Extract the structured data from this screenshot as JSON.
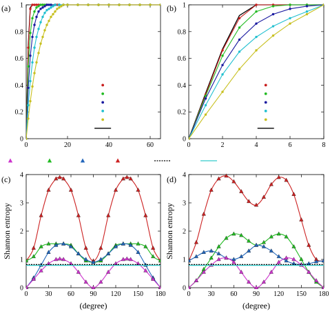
{
  "figure": {
    "legend_row_colors": [
      "#cc33cc",
      "#22bb22",
      "#2266bb",
      "#cc2222",
      "#000000",
      "#33cccc"
    ]
  },
  "chart_data": [
    {
      "id": "a",
      "panel_label": "(a)",
      "type": "line",
      "xlim": [
        0,
        65
      ],
      "ylim": [
        0,
        1
      ],
      "xticks": [
        "0",
        "20",
        "40",
        "60"
      ],
      "xtick_values": [
        0,
        20,
        40,
        60
      ],
      "yticks": [
        "0",
        "0.2",
        "0.4",
        "0.6",
        "0.8",
        "1"
      ],
      "ytick_values": [
        0,
        0.2,
        0.4,
        0.6,
        0.8,
        1
      ],
      "xlabel": "",
      "ylabel": "",
      "grid": false,
      "legend": {
        "position": "bottom-right",
        "entries": [
          {
            "color": "#c81e1e",
            "kind": "dot"
          },
          {
            "color": "#22bb22",
            "kind": "dot"
          },
          {
            "color": "#1a1aa0",
            "kind": "dot"
          },
          {
            "color": "#22c0d0",
            "kind": "dot"
          },
          {
            "color": "#c8c020",
            "kind": "dot"
          },
          {
            "color": "#000000",
            "kind": "line"
          }
        ]
      },
      "series": [
        {
          "color": "#000000",
          "marker": "none",
          "x": [
            0,
            1,
            2,
            3,
            4,
            65
          ],
          "y": [
            0,
            0.7,
            0.98,
            1,
            1,
            1
          ]
        },
        {
          "color": "#c81e1e",
          "marker": "dot",
          "x": [
            0,
            1,
            2,
            3,
            4,
            5,
            6,
            8,
            10,
            15,
            20,
            25,
            30,
            35,
            40,
            45,
            50,
            55,
            60,
            65
          ],
          "y": [
            0,
            0.68,
            0.97,
            1,
            1,
            1,
            1,
            1,
            1,
            1,
            1,
            1,
            1,
            1,
            1,
            1,
            1,
            1,
            1,
            1
          ]
        },
        {
          "color": "#22bb22",
          "marker": "dot",
          "x": [
            0,
            1,
            2,
            3,
            4,
            5,
            6,
            7,
            8,
            9,
            10,
            12,
            14,
            16,
            18,
            20,
            25,
            30,
            35,
            40,
            45,
            50,
            55,
            60,
            65
          ],
          "y": [
            0,
            0.54,
            0.79,
            0.9,
            0.95,
            0.98,
            0.99,
            1,
            1,
            1,
            1,
            1,
            1,
            1,
            1,
            1,
            1,
            1,
            1,
            1,
            1,
            1,
            1,
            1,
            1
          ]
        },
        {
          "color": "#1a1aa0",
          "marker": "dot",
          "x": [
            0,
            1,
            2,
            3,
            4,
            5,
            6,
            7,
            8,
            9,
            10,
            11,
            12,
            14,
            16,
            18,
            20,
            25,
            30,
            35,
            40,
            45,
            50,
            55,
            60,
            65
          ],
          "y": [
            0,
            0.38,
            0.62,
            0.76,
            0.85,
            0.91,
            0.95,
            0.97,
            0.98,
            0.99,
            1,
            1,
            1,
            1,
            1,
            1,
            1,
            1,
            1,
            1,
            1,
            1,
            1,
            1,
            1,
            1
          ]
        },
        {
          "color": "#22c0d0",
          "marker": "dot",
          "x": [
            0,
            1,
            2,
            3,
            4,
            5,
            6,
            7,
            8,
            9,
            10,
            11,
            12,
            13,
            14,
            16,
            18,
            20,
            25,
            30,
            35,
            40,
            45,
            50,
            55,
            60,
            65
          ],
          "y": [
            0,
            0.25,
            0.43,
            0.57,
            0.68,
            0.76,
            0.82,
            0.87,
            0.91,
            0.94,
            0.96,
            0.97,
            0.98,
            0.99,
            1,
            1,
            1,
            1,
            1,
            1,
            1,
            1,
            1,
            1,
            1,
            1,
            1
          ]
        },
        {
          "color": "#c8c020",
          "marker": "dot",
          "x": [
            0,
            1,
            2,
            3,
            4,
            5,
            6,
            7,
            8,
            9,
            10,
            11,
            12,
            13,
            14,
            15,
            16,
            17,
            18,
            20,
            25,
            30,
            35,
            40,
            45,
            50,
            55,
            60,
            65
          ],
          "y": [
            0,
            0.15,
            0.28,
            0.39,
            0.49,
            0.57,
            0.64,
            0.71,
            0.76,
            0.81,
            0.85,
            0.88,
            0.91,
            0.93,
            0.95,
            0.97,
            0.98,
            0.99,
            1,
            1,
            1,
            1,
            1,
            1,
            1,
            1,
            1,
            1,
            1
          ]
        }
      ]
    },
    {
      "id": "b",
      "panel_label": "(b)",
      "type": "line",
      "xlim": [
        0,
        8
      ],
      "ylim": [
        0,
        1
      ],
      "xticks": [
        "0",
        "2",
        "4",
        "6",
        "8"
      ],
      "xtick_values": [
        0,
        2,
        4,
        6,
        8
      ],
      "yticks": [
        "0",
        "0.2",
        "0.4",
        "0.6",
        "0.8",
        "1"
      ],
      "ytick_values": [
        0,
        0.2,
        0.4,
        0.6,
        0.8,
        1
      ],
      "xlabel": "",
      "ylabel": "",
      "grid": false,
      "legend": {
        "position": "bottom-right",
        "entries": [
          {
            "color": "#c81e1e",
            "kind": "dot"
          },
          {
            "color": "#22bb22",
            "kind": "dot"
          },
          {
            "color": "#1a1aa0",
            "kind": "dot"
          },
          {
            "color": "#22c0d0",
            "kind": "dot"
          },
          {
            "color": "#c8c020",
            "kind": "dot"
          },
          {
            "color": "#000000",
            "kind": "line"
          }
        ]
      },
      "series": [
        {
          "color": "#000000",
          "marker": "none",
          "x": [
            0,
            1,
            2,
            3,
            4,
            5,
            6,
            7,
            8
          ],
          "y": [
            0,
            0.34,
            0.67,
            0.92,
            1,
            1,
            1,
            1,
            1
          ]
        },
        {
          "color": "#c81e1e",
          "marker": "dot",
          "x": [
            0,
            1,
            2,
            3,
            4,
            5,
            6,
            7,
            8
          ],
          "y": [
            0,
            0.33,
            0.66,
            0.9,
            1,
            1,
            1,
            1,
            1
          ]
        },
        {
          "color": "#22bb22",
          "marker": "dot",
          "x": [
            0,
            1,
            2,
            3,
            4,
            5,
            6,
            7,
            8
          ],
          "y": [
            0,
            0.32,
            0.62,
            0.83,
            0.95,
            0.99,
            1,
            1,
            1
          ]
        },
        {
          "color": "#1a1aa0",
          "marker": "dot",
          "x": [
            0,
            1,
            2,
            3,
            4,
            5,
            6,
            7,
            8
          ],
          "y": [
            0,
            0.3,
            0.55,
            0.74,
            0.86,
            0.93,
            0.97,
            0.99,
            1
          ]
        },
        {
          "color": "#22c0d0",
          "marker": "dot",
          "x": [
            0,
            1,
            2,
            3,
            4,
            5,
            6,
            7,
            8
          ],
          "y": [
            0,
            0.25,
            0.48,
            0.65,
            0.76,
            0.84,
            0.9,
            0.95,
            1
          ]
        },
        {
          "color": "#c8c020",
          "marker": "dot",
          "x": [
            0,
            1,
            2,
            3,
            4,
            5,
            6,
            7,
            8
          ],
          "y": [
            0,
            0.18,
            0.35,
            0.52,
            0.66,
            0.77,
            0.86,
            0.93,
            1
          ]
        }
      ]
    },
    {
      "id": "c",
      "panel_label": "(c)",
      "type": "line",
      "xlim": [
        0,
        180
      ],
      "ylim": [
        0,
        4
      ],
      "xticks": [
        "0",
        "30",
        "60",
        "90",
        "120",
        "150",
        "180"
      ],
      "xtick_values": [
        0,
        30,
        60,
        90,
        120,
        150,
        180
      ],
      "yticks": [
        "0",
        "1",
        "2",
        "3",
        "4"
      ],
      "ytick_values": [
        0,
        1,
        2,
        3,
        4
      ],
      "xlabel": "(degree)",
      "ylabel": "Shannon entropy",
      "grid": false,
      "series": [
        {
          "color": "#cc2222",
          "marker": "triangle",
          "x": [
            0,
            10,
            20,
            30,
            40,
            45,
            50,
            60,
            70,
            80,
            90,
            100,
            110,
            120,
            130,
            135,
            140,
            150,
            160,
            170,
            180
          ],
          "y": [
            0.95,
            1.4,
            2.55,
            3.45,
            3.85,
            3.9,
            3.85,
            3.45,
            2.55,
            1.4,
            0.95,
            1.4,
            2.55,
            3.45,
            3.85,
            3.9,
            3.85,
            3.45,
            2.55,
            1.4,
            0.95
          ]
        },
        {
          "color": "#22bb22",
          "marker": "triangle",
          "x": [
            0,
            10,
            20,
            30,
            40,
            50,
            60,
            70,
            80,
            90,
            100,
            110,
            120,
            130,
            140,
            150,
            160,
            170,
            180
          ],
          "y": [
            0.95,
            1.1,
            1.45,
            1.55,
            1.55,
            1.55,
            1.5,
            1.2,
            0.95,
            0.9,
            0.95,
            1.2,
            1.5,
            1.55,
            1.55,
            1.55,
            1.45,
            1.1,
            0.95
          ]
        },
        {
          "color": "#2266bb",
          "marker": "triangle",
          "x": [
            0,
            10,
            20,
            30,
            40,
            50,
            60,
            70,
            80,
            90,
            100,
            110,
            120,
            130,
            140,
            150,
            160,
            170,
            180
          ],
          "y": [
            0,
            0.35,
            0.8,
            1.25,
            1.5,
            1.55,
            1.45,
            1.2,
            1.0,
            0.9,
            1.0,
            1.2,
            1.45,
            1.55,
            1.5,
            1.25,
            0.8,
            0.35,
            0
          ]
        },
        {
          "color": "#cc33cc",
          "marker": "triangle",
          "x": [
            0,
            10,
            20,
            30,
            40,
            45,
            50,
            60,
            70,
            80,
            90,
            100,
            110,
            120,
            130,
            135,
            140,
            150,
            160,
            170,
            180
          ],
          "y": [
            0,
            0.3,
            0.6,
            0.85,
            1.0,
            1.02,
            1.0,
            0.85,
            0.55,
            0.2,
            0,
            0.2,
            0.55,
            0.85,
            1.0,
            1.02,
            1.0,
            0.85,
            0.6,
            0.3,
            0
          ]
        },
        {
          "color": "#000000",
          "marker": "none",
          "dash": "2,1.5",
          "x": [
            0,
            180
          ],
          "y": [
            0.82,
            0.82
          ]
        },
        {
          "color": "#33cccc",
          "marker": "none",
          "x": [
            0,
            180
          ],
          "y": [
            0.79,
            0.79
          ]
        }
      ]
    },
    {
      "id": "d",
      "panel_label": "(d)",
      "type": "line",
      "xlim": [
        0,
        180
      ],
      "ylim": [
        0,
        4
      ],
      "xticks": [
        "0",
        "30",
        "60",
        "90",
        "120",
        "150",
        "180"
      ],
      "xtick_values": [
        0,
        30,
        60,
        90,
        120,
        150,
        180
      ],
      "yticks": [
        "0",
        "1",
        "2",
        "3",
        "4"
      ],
      "ytick_values": [
        0,
        1,
        2,
        3,
        4
      ],
      "xlabel": "(degree)",
      "ylabel": "Shannon entropy",
      "grid": false,
      "series": [
        {
          "color": "#cc2222",
          "marker": "triangle",
          "x": [
            0,
            10,
            20,
            30,
            40,
            50,
            60,
            70,
            80,
            90,
            100,
            110,
            120,
            130,
            140,
            150,
            160,
            170,
            180
          ],
          "y": [
            0.95,
            1.6,
            2.6,
            3.45,
            3.85,
            3.95,
            3.75,
            3.4,
            3.05,
            2.92,
            3.2,
            3.65,
            3.9,
            3.8,
            3.3,
            2.4,
            1.5,
            1.0,
            0.95
          ]
        },
        {
          "color": "#22bb22",
          "marker": "triangle",
          "x": [
            0,
            10,
            20,
            30,
            40,
            50,
            60,
            70,
            80,
            90,
            100,
            110,
            120,
            130,
            140,
            150,
            160,
            170,
            180
          ],
          "y": [
            0,
            0.25,
            0.65,
            1.05,
            1.45,
            1.75,
            1.9,
            1.85,
            1.65,
            1.5,
            1.6,
            1.8,
            1.9,
            1.8,
            1.45,
            1.0,
            0.55,
            0.2,
            0
          ]
        },
        {
          "color": "#2266bb",
          "marker": "triangle",
          "x": [
            0,
            10,
            20,
            30,
            40,
            50,
            60,
            70,
            80,
            90,
            100,
            110,
            120,
            130,
            140,
            150,
            160,
            170,
            180
          ],
          "y": [
            0.95,
            1.1,
            1.25,
            1.3,
            1.2,
            1.05,
            1.0,
            1.1,
            1.3,
            1.5,
            1.45,
            1.3,
            1.1,
            0.95,
            0.85,
            0.82,
            0.85,
            0.92,
            0.95
          ]
        },
        {
          "color": "#cc33cc",
          "marker": "triangle",
          "x": [
            0,
            10,
            20,
            30,
            40,
            50,
            60,
            70,
            80,
            90,
            100,
            110,
            120,
            130,
            140,
            150,
            160,
            170,
            180
          ],
          "y": [
            0,
            0.25,
            0.55,
            0.8,
            1.0,
            1.05,
            0.9,
            0.55,
            0.2,
            0,
            0.2,
            0.55,
            0.9,
            1.05,
            1.0,
            0.8,
            0.55,
            0.25,
            0
          ]
        },
        {
          "color": "#000000",
          "marker": "none",
          "dash": "2,1.5",
          "x": [
            0,
            180
          ],
          "y": [
            0.82,
            0.82
          ]
        },
        {
          "color": "#33cccc",
          "marker": "none",
          "x": [
            0,
            180
          ],
          "y": [
            0.79,
            0.79
          ]
        }
      ]
    }
  ]
}
